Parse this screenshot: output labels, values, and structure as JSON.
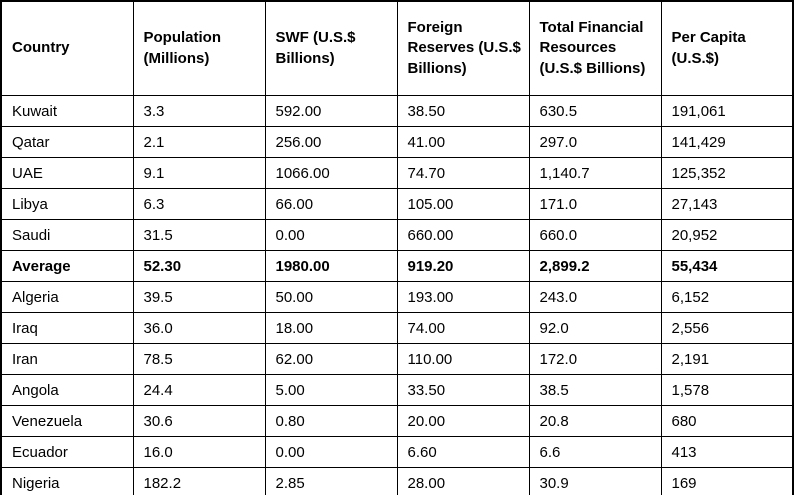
{
  "table": {
    "columns": [
      "Country",
      "Population (Millions)",
      "SWF (U.S.$ Billions)",
      "Foreign Reserves (U.S.$ Billions)",
      "Total Financial Resources (U.S.$ Billions)",
      "Per Capita (U.S.$)"
    ],
    "rows": [
      {
        "country": "Kuwait",
        "population": "3.3",
        "swf": "592.00",
        "reserves": "38.50",
        "total": "630.5",
        "per_capita": "191,061",
        "bold": false
      },
      {
        "country": "Qatar",
        "population": "2.1",
        "swf": "256.00",
        "reserves": "41.00",
        "total": "297.0",
        "per_capita": "141,429",
        "bold": false
      },
      {
        "country": "UAE",
        "population": "9.1",
        "swf": "1066.00",
        "reserves": "74.70",
        "total": "1,140.7",
        "per_capita": "125,352",
        "bold": false
      },
      {
        "country": "Libya",
        "population": "6.3",
        "swf": "66.00",
        "reserves": "105.00",
        "total": "171.0",
        "per_capita": "27,143",
        "bold": false
      },
      {
        "country": "Saudi",
        "population": "31.5",
        "swf": "0.00",
        "reserves": "660.00",
        "total": "660.0",
        "per_capita": "20,952",
        "bold": false
      },
      {
        "country": "Average",
        "population": "52.30",
        "swf": "1980.00",
        "reserves": "919.20",
        "total": "2,899.2",
        "per_capita": "55,434",
        "bold": true
      },
      {
        "country": "Algeria",
        "population": "39.5",
        "swf": "50.00",
        "reserves": "193.00",
        "total": "243.0",
        "per_capita": "6,152",
        "bold": false
      },
      {
        "country": "Iraq",
        "population": "36.0",
        "swf": "18.00",
        "reserves": "74.00",
        "total": "92.0",
        "per_capita": "2,556",
        "bold": false
      },
      {
        "country": "Iran",
        "population": "78.5",
        "swf": "62.00",
        "reserves": "110.00",
        "total": "172.0",
        "per_capita": "2,191",
        "bold": false
      },
      {
        "country": "Angola",
        "population": "24.4",
        "swf": "5.00",
        "reserves": "33.50",
        "total": "38.5",
        "per_capita": "1,578",
        "bold": false
      },
      {
        "country": "Venezuela",
        "population": "30.6",
        "swf": "0.80",
        "reserves": "20.00",
        "total": "20.8",
        "per_capita": "680",
        "bold": false
      },
      {
        "country": "Ecuador",
        "population": "16.0",
        "swf": "0.00",
        "reserves": "6.60",
        "total": "6.6",
        "per_capita": "413",
        "bold": false
      },
      {
        "country": "Nigeria",
        "population": "182.2",
        "swf": "2.85",
        "reserves": "28.00",
        "total": "30.9",
        "per_capita": "169",
        "bold": false
      }
    ]
  },
  "colors": {
    "border": "#000000",
    "background": "#ffffff",
    "text": "#000000"
  }
}
